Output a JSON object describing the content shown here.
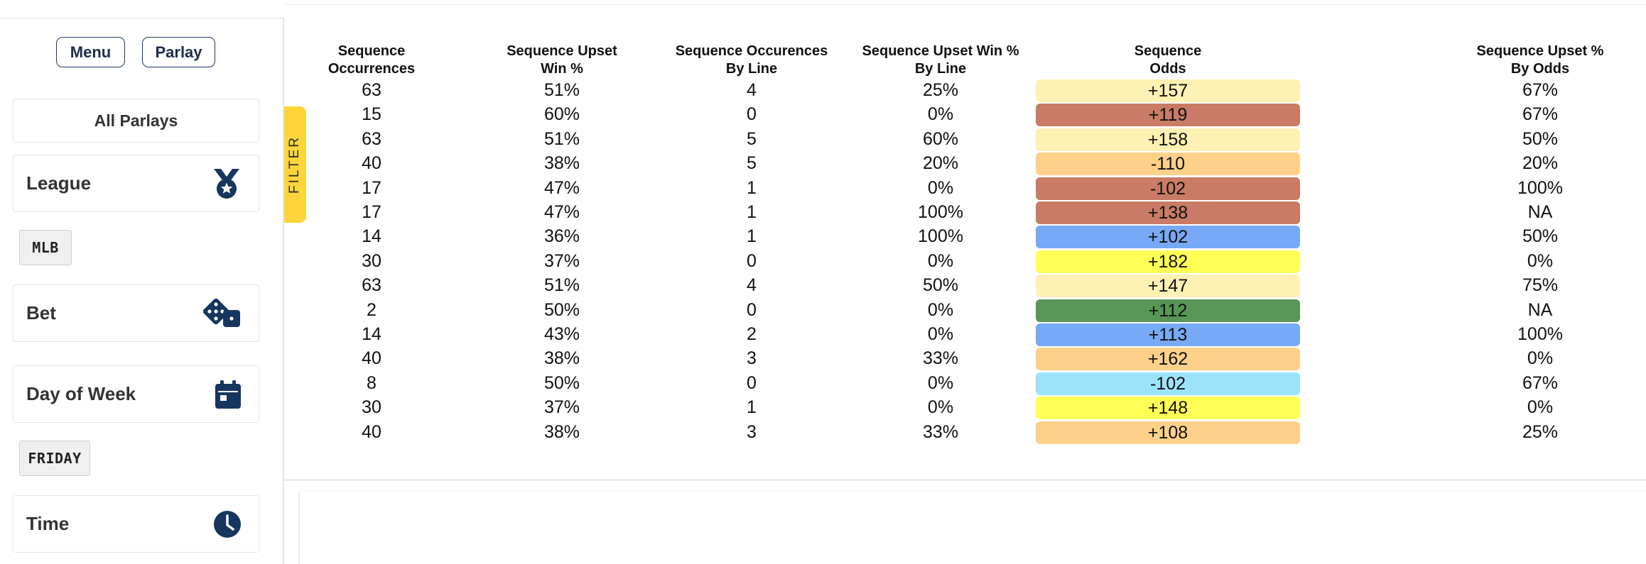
{
  "sidebar": {
    "menu_label": "Menu",
    "parlay_label": "Parlay",
    "all_parlays_label": "All Parlays",
    "league_label": "League",
    "league_chip": "MLB",
    "bet_label": "Bet",
    "day_label": "Day of Week",
    "day_chip": "FRIDAY",
    "time_label": "Time",
    "icons": {
      "league": "medal-icon",
      "bet": "dice-icon",
      "day": "calendar-icon",
      "time": "clock-icon"
    },
    "icon_color": "#17365f"
  },
  "filter_tab": {
    "label": "FILTER",
    "color": "#fcd53a"
  },
  "table": {
    "headers": {
      "occ_line1": "Sequence",
      "occ_line2": "Occurrences",
      "upset_line1": "Sequence Upset",
      "upset_line2": "Win %",
      "occline_line1": "Sequence Occurences",
      "occline_line2": "By Line",
      "upsetline_line1": "Sequence Upset Win %",
      "upsetline_line2": "By Line",
      "odds_line1": "Sequence",
      "odds_line2": "Odds",
      "upsetodds_line1": "Sequence Upset %",
      "upsetodds_line2": "By Odds"
    },
    "rows": [
      {
        "occ": "63",
        "upset": "51%",
        "by_line": "4",
        "upset_line": "25%",
        "odds": "+157",
        "color": "#fff0b3",
        "upset_odds": "67%"
      },
      {
        "occ": "15",
        "upset": "60%",
        "by_line": "0",
        "upset_line": "0%",
        "odds": "+119",
        "color": "#c97b66",
        "upset_odds": "67%"
      },
      {
        "occ": "63",
        "upset": "51%",
        "by_line": "5",
        "upset_line": "60%",
        "odds": "+158",
        "color": "#fff0b3",
        "upset_odds": "50%"
      },
      {
        "occ": "40",
        "upset": "38%",
        "by_line": "5",
        "upset_line": "20%",
        "odds": "-110",
        "color": "#ffd08a",
        "upset_odds": "20%"
      },
      {
        "occ": "17",
        "upset": "47%",
        "by_line": "1",
        "upset_line": "0%",
        "odds": "-102",
        "color": "#c97b66",
        "upset_odds": "100%"
      },
      {
        "occ": "17",
        "upset": "47%",
        "by_line": "1",
        "upset_line": "100%",
        "odds": "+138",
        "color": "#c97b66",
        "upset_odds": "NA"
      },
      {
        "occ": "14",
        "upset": "36%",
        "by_line": "1",
        "upset_line": "100%",
        "odds": "+102",
        "color": "#78a9f4",
        "upset_odds": "50%"
      },
      {
        "occ": "30",
        "upset": "37%",
        "by_line": "0",
        "upset_line": "0%",
        "odds": "+182",
        "color": "#ffff55",
        "upset_odds": "0%"
      },
      {
        "occ": "63",
        "upset": "51%",
        "by_line": "4",
        "upset_line": "50%",
        "odds": "+147",
        "color": "#fff0b3",
        "upset_odds": "75%"
      },
      {
        "occ": "2",
        "upset": "50%",
        "by_line": "0",
        "upset_line": "0%",
        "odds": "+112",
        "color": "#579657",
        "upset_odds": "NA"
      },
      {
        "occ": "14",
        "upset": "43%",
        "by_line": "2",
        "upset_line": "0%",
        "odds": "+113",
        "color": "#78a9f4",
        "upset_odds": "100%"
      },
      {
        "occ": "40",
        "upset": "38%",
        "by_line": "3",
        "upset_line": "33%",
        "odds": "+162",
        "color": "#ffd08a",
        "upset_odds": "0%"
      },
      {
        "occ": "8",
        "upset": "50%",
        "by_line": "0",
        "upset_line": "0%",
        "odds": "-102",
        "color": "#9be3f8",
        "upset_odds": "67%"
      },
      {
        "occ": "30",
        "upset": "37%",
        "by_line": "1",
        "upset_line": "0%",
        "odds": "+148",
        "color": "#ffff55",
        "upset_odds": "0%"
      },
      {
        "occ": "40",
        "upset": "38%",
        "by_line": "3",
        "upset_line": "33%",
        "odds": "+108",
        "color": "#ffd08a",
        "upset_odds": "25%"
      }
    ]
  }
}
